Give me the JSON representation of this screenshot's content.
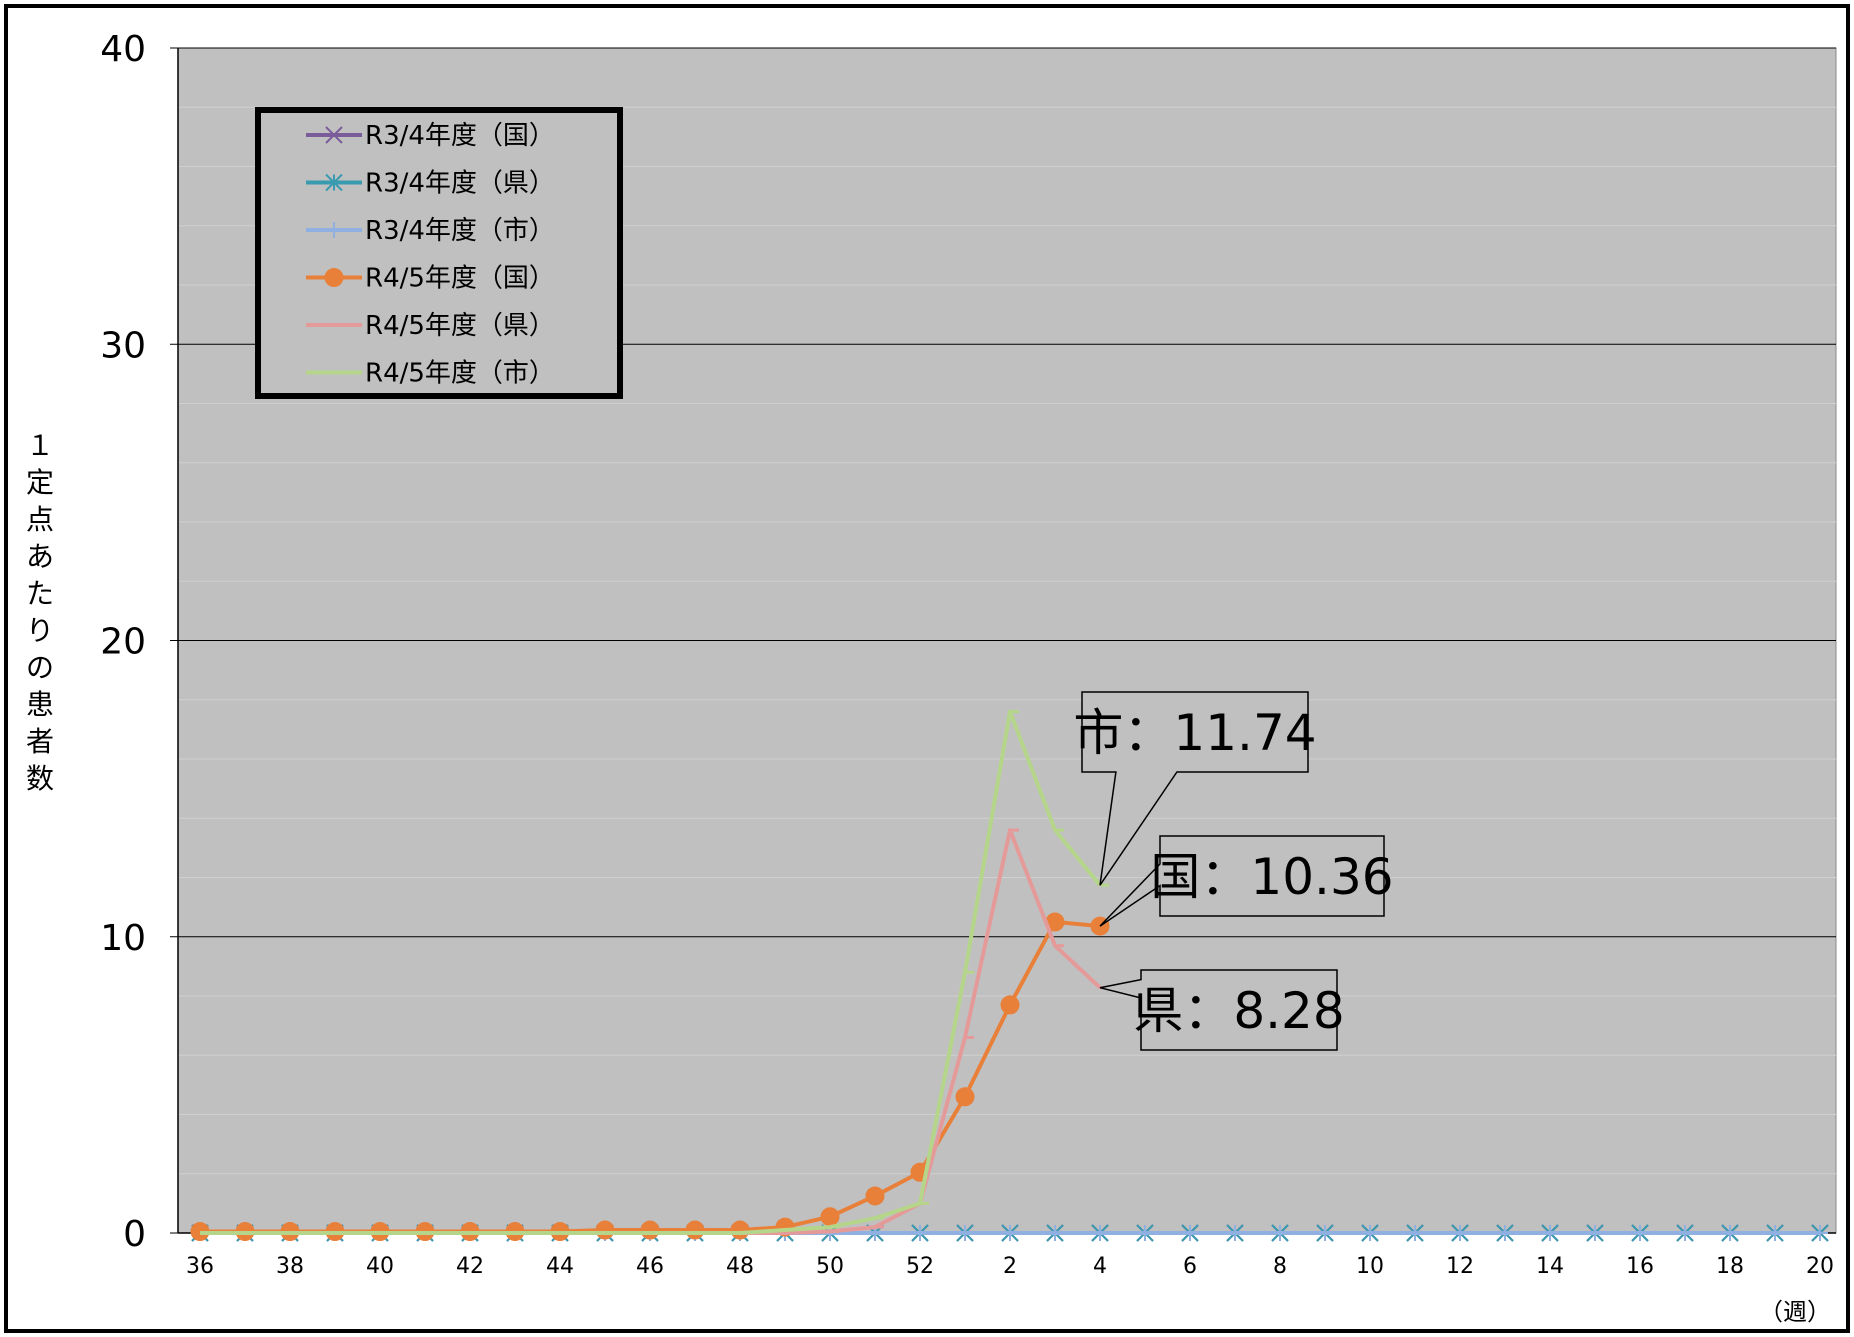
{
  "chart_data": {
    "type": "line",
    "xlabel": "（週）",
    "ylabel": "１定点あたりの患者数",
    "ylim": [
      0,
      40
    ],
    "yticks": [
      0,
      10,
      20,
      30,
      40
    ],
    "weeks": [
      36,
      37,
      38,
      39,
      40,
      41,
      42,
      43,
      44,
      45,
      46,
      47,
      48,
      49,
      50,
      51,
      52,
      1,
      2,
      3,
      4,
      5,
      6,
      7,
      8,
      9,
      10,
      11,
      12,
      13,
      14,
      15,
      16,
      17,
      18,
      19,
      20
    ],
    "xtick_labels": [
      "36",
      "38",
      "40",
      "42",
      "44",
      "46",
      "48",
      "50",
      "52",
      "2",
      "4",
      "6",
      "8",
      "10",
      "12",
      "14",
      "16",
      "18",
      "20"
    ],
    "legend_position": "top-left",
    "grid": "horizontal",
    "series": [
      {
        "name": "R3/4年度（国）",
        "color": "#7a5c9a",
        "marker": "x",
        "values": [
          0,
          0,
          0,
          0,
          0,
          0,
          0,
          0,
          0,
          0,
          0,
          0,
          0,
          0,
          0,
          0,
          0,
          0,
          0,
          0,
          0,
          0,
          0,
          0,
          0,
          0,
          0,
          0,
          0,
          0,
          0,
          0,
          0,
          0,
          0,
          0,
          0
        ]
      },
      {
        "name": "R3/4年度（県）",
        "color": "#3a9bb0",
        "marker": "star",
        "values": [
          0,
          0,
          0,
          0,
          0,
          0,
          0,
          0,
          0,
          0,
          0,
          0,
          0,
          0,
          0,
          0,
          0,
          0,
          0,
          0,
          0,
          0,
          0,
          0,
          0,
          0,
          0,
          0,
          0,
          0,
          0,
          0,
          0,
          0,
          0,
          0,
          0
        ]
      },
      {
        "name": "R3/4年度（市）",
        "color": "#8fb0e0",
        "marker": "plus",
        "values": [
          0,
          0,
          0,
          0,
          0,
          0,
          0,
          0,
          0,
          0,
          0,
          0,
          0,
          0,
          0,
          0,
          0,
          0,
          0,
          0,
          0,
          0,
          0,
          0,
          0,
          0,
          0,
          0,
          0,
          0,
          0,
          0,
          0,
          0,
          0,
          0,
          0
        ]
      },
      {
        "name": "R4/5年度（国）",
        "color": "#e8803a",
        "marker": "circle",
        "values": [
          0.05,
          0.05,
          0.05,
          0.05,
          0.05,
          0.05,
          0.05,
          0.05,
          0.05,
          0.1,
          0.1,
          0.1,
          0.1,
          0.2,
          0.55,
          1.25,
          2.05,
          4.6,
          7.7,
          10.5,
          10.36
        ]
      },
      {
        "name": "R4/5年度（県）",
        "color": "#e59a9a",
        "marker": "dash",
        "values": [
          0,
          0,
          0,
          0,
          0,
          0,
          0,
          0,
          0,
          0,
          0,
          0,
          0,
          0,
          0.05,
          0.2,
          1.0,
          6.6,
          13.6,
          9.7,
          8.28
        ]
      },
      {
        "name": "R4/5年度（市）",
        "color": "#b5d68a",
        "marker": "dash",
        "values": [
          0,
          0,
          0,
          0,
          0,
          0,
          0,
          0,
          0,
          0,
          0,
          0,
          0,
          0.1,
          0.2,
          0.5,
          1.0,
          8.8,
          17.6,
          13.6,
          11.74
        ]
      }
    ],
    "annotations": [
      {
        "label": "市：11.74",
        "series": "R4/5年度（市）",
        "week_index": 20
      },
      {
        "label": "国：10.36",
        "series": "R4/5年度（国）",
        "week_index": 20
      },
      {
        "label": "県：8.28",
        "series": "R4/5年度（県）",
        "week_index": 20
      }
    ]
  }
}
